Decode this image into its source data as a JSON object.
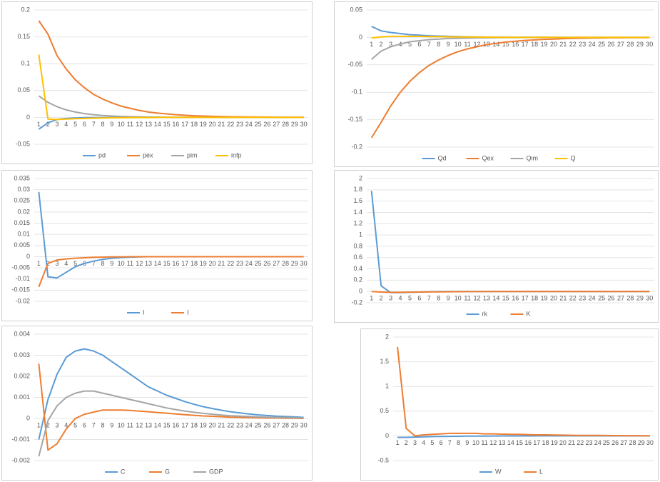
{
  "chart_data": [
    {
      "type": "line",
      "categories": [
        "1",
        "2",
        "3",
        "4",
        "5",
        "6",
        "7",
        "8",
        "9",
        "10",
        "11",
        "12",
        "13",
        "14",
        "15",
        "16",
        "17",
        "18",
        "19",
        "20",
        "21",
        "22",
        "23",
        "24",
        "25",
        "26",
        "27",
        "28",
        "29",
        "30"
      ],
      "ylim": [
        -0.05,
        0.2
      ],
      "yticks": [
        -0.05,
        0,
        0.05,
        0.1,
        0.15,
        0.2
      ],
      "grid": true,
      "legend": "bottom",
      "series": [
        {
          "name": "pd",
          "color": "#5b9bd5",
          "values": [
            -0.022,
            -0.01,
            -0.004,
            -0.002,
            -0.001,
            -0.0005,
            -0.0003,
            -0.0002,
            -0.0001,
            0,
            0,
            0,
            0,
            0,
            0,
            0,
            0,
            0,
            0,
            0,
            0,
            0,
            0,
            0,
            0,
            0,
            0,
            0,
            0,
            0
          ]
        },
        {
          "name": "pex",
          "color": "#ed7d31",
          "values": [
            0.18,
            0.155,
            0.115,
            0.09,
            0.07,
            0.055,
            0.043,
            0.034,
            0.027,
            0.021,
            0.017,
            0.013,
            0.01,
            0.008,
            0.0065,
            0.005,
            0.004,
            0.003,
            0.0025,
            0.002,
            0.0015,
            0.0012,
            0.001,
            0.0008,
            0.0006,
            0.0005,
            0.0004,
            0.0003,
            0.0002,
            0.0002
          ]
        },
        {
          "name": "pim",
          "color": "#a5a5a5",
          "values": [
            0.04,
            0.028,
            0.02,
            0.014,
            0.01,
            0.007,
            0.005,
            0.0035,
            0.0025,
            0.0018,
            0.0013,
            0.001,
            0.0007,
            0.0005,
            0.0004,
            0.0003,
            0.0002,
            0.0001,
            0.0001,
            0,
            0,
            0,
            0,
            0,
            0,
            0,
            0,
            0,
            0,
            0
          ]
        },
        {
          "name": "infp",
          "color": "#ffc000",
          "values": [
            0.117,
            -0.003,
            -0.004,
            -0.003,
            -0.0025,
            -0.002,
            -0.0015,
            -0.001,
            -0.0008,
            -0.0006,
            -0.0004,
            -0.0003,
            -0.0002,
            -0.0001,
            0,
            0,
            0,
            0,
            0,
            0,
            0,
            0,
            0,
            0,
            0,
            0,
            0,
            0,
            0,
            0
          ]
        }
      ]
    },
    {
      "type": "line",
      "categories": [
        "1",
        "2",
        "3",
        "4",
        "5",
        "6",
        "7",
        "8",
        "9",
        "10",
        "11",
        "12",
        "13",
        "14",
        "15",
        "16",
        "17",
        "18",
        "19",
        "20",
        "21",
        "22",
        "23",
        "24",
        "25",
        "26",
        "27",
        "28",
        "29",
        "30"
      ],
      "ylim": [
        -0.2,
        0.05
      ],
      "yticks": [
        -0.2,
        -0.15,
        -0.1,
        -0.05,
        0,
        0.05
      ],
      "grid": true,
      "legend": "bottom",
      "series": [
        {
          "name": "Qd",
          "color": "#5b9bd5",
          "values": [
            0.02,
            0.012,
            0.009,
            0.007,
            0.005,
            0.004,
            0.003,
            0.0025,
            0.002,
            0.0015,
            0.001,
            0.0008,
            0.0006,
            0.0005,
            0.0004,
            0.0003,
            0.0002,
            0.0002,
            0.0001,
            0.0001,
            0,
            0,
            0,
            0,
            0,
            0,
            0,
            0,
            0,
            0
          ]
        },
        {
          "name": "Qex",
          "color": "#ed7d31",
          "values": [
            -0.183,
            -0.155,
            -0.125,
            -0.1,
            -0.08,
            -0.064,
            -0.051,
            -0.041,
            -0.033,
            -0.026,
            -0.021,
            -0.017,
            -0.013,
            -0.011,
            -0.0085,
            -0.007,
            -0.0055,
            -0.0045,
            -0.0035,
            -0.003,
            -0.0022,
            -0.0018,
            -0.0014,
            -0.0011,
            -0.0009,
            -0.0007,
            -0.0006,
            -0.0005,
            -0.0004,
            -0.0003
          ]
        },
        {
          "name": "Qim",
          "color": "#a5a5a5",
          "values": [
            -0.04,
            -0.025,
            -0.017,
            -0.012,
            -0.008,
            -0.006,
            -0.004,
            -0.003,
            -0.002,
            -0.0015,
            -0.001,
            -0.0008,
            -0.0006,
            -0.0004,
            -0.0003,
            -0.0002,
            -0.0001,
            0,
            0,
            0,
            0,
            0,
            0,
            0,
            0,
            0,
            0,
            0,
            0,
            0
          ]
        },
        {
          "name": "Q",
          "color": "#ffc000",
          "values": [
            -0.001,
            0.001,
            0.002,
            0.002,
            0.002,
            0.002,
            0.0015,
            0.0015,
            0.001,
            0.001,
            0.0008,
            0.0006,
            0.0005,
            0.0004,
            0.0003,
            0.0002,
            0.0002,
            0.0001,
            0.0001,
            0,
            0,
            0,
            0,
            0,
            0,
            0,
            0,
            0,
            0,
            0
          ]
        }
      ]
    },
    {
      "type": "line",
      "categories": [
        "1",
        "2",
        "3",
        "4",
        "5",
        "6",
        "7",
        "8",
        "9",
        "10",
        "11",
        "12",
        "13",
        "14",
        "15",
        "16",
        "17",
        "18",
        "19",
        "20",
        "21",
        "22",
        "23",
        "24",
        "25",
        "26",
        "27",
        "28",
        "29",
        "30"
      ],
      "ylim": [
        -0.02,
        0.035
      ],
      "yticks": [
        -0.02,
        -0.015,
        -0.01,
        -0.005,
        0,
        0.005,
        0.01,
        0.015,
        0.02,
        0.025,
        0.03,
        0.035
      ],
      "grid": true,
      "legend": "bottom",
      "series": [
        {
          "name": "I",
          "color": "#5b9bd5",
          "values": [
            0.029,
            -0.009,
            -0.0095,
            -0.007,
            -0.0045,
            -0.003,
            -0.002,
            -0.0012,
            -0.0007,
            -0.0004,
            -0.0002,
            -0.0001,
            0,
            0,
            0,
            0,
            0,
            0,
            0,
            0,
            0,
            0,
            0,
            0,
            0,
            0,
            0,
            0,
            0,
            0
          ]
        },
        {
          "name": "I",
          "color": "#ed7d31",
          "values": [
            -0.0135,
            -0.003,
            -0.0015,
            -0.001,
            -0.0007,
            -0.0005,
            -0.0003,
            -0.0002,
            -0.0001,
            -0.0001,
            0,
            0,
            0,
            0,
            0,
            0,
            0,
            0,
            0,
            0,
            0,
            0,
            0,
            0,
            0,
            0,
            0,
            0,
            0,
            0
          ]
        }
      ]
    },
    {
      "type": "line",
      "categories": [
        "1",
        "2",
        "3",
        "4",
        "5",
        "6",
        "7",
        "8",
        "9",
        "10",
        "11",
        "12",
        "13",
        "14",
        "15",
        "16",
        "17",
        "18",
        "19",
        "20",
        "21",
        "22",
        "23",
        "24",
        "25",
        "26",
        "27",
        "28",
        "29",
        "30"
      ],
      "ylim": [
        -0.2,
        2
      ],
      "yticks": [
        -0.2,
        0,
        0.2,
        0.4,
        0.6,
        0.8,
        1,
        1.2,
        1.4,
        1.6,
        1.8,
        2
      ],
      "grid": true,
      "legend": "bottom",
      "series": [
        {
          "name": "rk",
          "color": "#5b9bd5",
          "values": [
            1.78,
            0.1,
            -0.02,
            -0.02,
            -0.015,
            -0.01,
            -0.005,
            -0.003,
            -0.002,
            -0.001,
            0,
            0,
            0,
            0,
            0,
            0,
            0,
            0,
            0,
            0,
            0,
            0,
            0,
            0,
            0,
            0,
            0,
            0,
            0,
            0
          ]
        },
        {
          "name": "K",
          "color": "#ed7d31",
          "values": [
            0,
            -0.01,
            -0.015,
            -0.015,
            -0.012,
            -0.01,
            -0.008,
            -0.006,
            -0.005,
            -0.004,
            -0.003,
            -0.0025,
            -0.002,
            -0.0015,
            -0.001,
            -0.001,
            -0.0008,
            -0.0006,
            -0.0005,
            -0.0004,
            -0.0003,
            -0.0002,
            -0.0002,
            -0.0001,
            -0.0001,
            0,
            0,
            0,
            0,
            0
          ]
        }
      ]
    },
    {
      "type": "line",
      "categories": [
        "1",
        "2",
        "3",
        "4",
        "5",
        "6",
        "7",
        "8",
        "9",
        "10",
        "11",
        "12",
        "13",
        "14",
        "15",
        "16",
        "17",
        "18",
        "19",
        "20",
        "21",
        "22",
        "23",
        "24",
        "25",
        "26",
        "27",
        "28",
        "29",
        "30"
      ],
      "ylim": [
        -0.002,
        0.004
      ],
      "yticks": [
        -0.002,
        -0.001,
        0,
        0.001,
        0.002,
        0.003,
        0.004
      ],
      "grid": true,
      "legend": "bottom",
      "series": [
        {
          "name": "C",
          "color": "#5b9bd5",
          "values": [
            -0.001,
            0.0009,
            0.0021,
            0.0029,
            0.0032,
            0.0033,
            0.0032,
            0.003,
            0.0027,
            0.0024,
            0.0021,
            0.0018,
            0.0015,
            0.0013,
            0.0011,
            0.00095,
            0.0008,
            0.00067,
            0.00056,
            0.00047,
            0.00039,
            0.00032,
            0.00026,
            0.00021,
            0.00017,
            0.00014,
            0.00011,
            9e-05,
            7e-05,
            5e-05
          ]
        },
        {
          "name": "G",
          "color": "#ed7d31",
          "values": [
            0.0026,
            -0.0015,
            -0.0012,
            -0.0005,
            0,
            0.0002,
            0.0003,
            0.0004,
            0.0004,
            0.0004,
            0.00038,
            0.00035,
            0.00032,
            0.00028,
            0.00025,
            0.00021,
            0.00018,
            0.00015,
            0.00012,
            0.0001,
            8e-05,
            6e-05,
            5e-05,
            4e-05,
            3e-05,
            2e-05,
            2e-05,
            1e-05,
            1e-05,
            0
          ]
        },
        {
          "name": "GDP",
          "color": "#a5a5a5",
          "values": [
            -0.0018,
            -0.0001,
            0.0006,
            0.001,
            0.0012,
            0.0013,
            0.0013,
            0.0012,
            0.0011,
            0.001,
            0.0009,
            0.0008,
            0.0007,
            0.0006,
            0.0005,
            0.00042,
            0.00035,
            0.00029,
            0.00024,
            0.0002,
            0.00016,
            0.00013,
            0.00011,
            9e-05,
            7e-05,
            6e-05,
            5e-05,
            4e-05,
            3e-05,
            2e-05
          ]
        }
      ]
    },
    {
      "type": "line",
      "categories": [
        "1",
        "2",
        "3",
        "4",
        "5",
        "6",
        "7",
        "8",
        "9",
        "10",
        "11",
        "12",
        "13",
        "14",
        "15",
        "16",
        "17",
        "18",
        "19",
        "20",
        "21",
        "22",
        "23",
        "24",
        "25",
        "26",
        "27",
        "28",
        "29",
        "30"
      ],
      "ylim": [
        -0.5,
        2
      ],
      "yticks": [
        -0.5,
        0,
        0.5,
        1,
        1.5,
        2
      ],
      "grid": true,
      "legend": "bottom",
      "series": [
        {
          "name": "W",
          "color": "#5b9bd5",
          "values": [
            -0.03,
            -0.03,
            -0.025,
            -0.02,
            -0.015,
            -0.012,
            -0.01,
            -0.008,
            -0.006,
            -0.005,
            -0.004,
            -0.003,
            -0.002,
            -0.002,
            -0.001,
            -0.001,
            0,
            0,
            0,
            0,
            0,
            0,
            0,
            0,
            0,
            0,
            0,
            0,
            0,
            0
          ]
        },
        {
          "name": "L",
          "color": "#ed7d31",
          "values": [
            1.8,
            0.15,
            0,
            0.02,
            0.03,
            0.04,
            0.05,
            0.05,
            0.05,
            0.05,
            0.04,
            0.04,
            0.035,
            0.03,
            0.03,
            0.025,
            0.02,
            0.02,
            0.018,
            0.015,
            0.012,
            0.01,
            0.01,
            0.008,
            0.007,
            0.006,
            0.005,
            0.004,
            0.003,
            0.002
          ]
        }
      ]
    }
  ]
}
